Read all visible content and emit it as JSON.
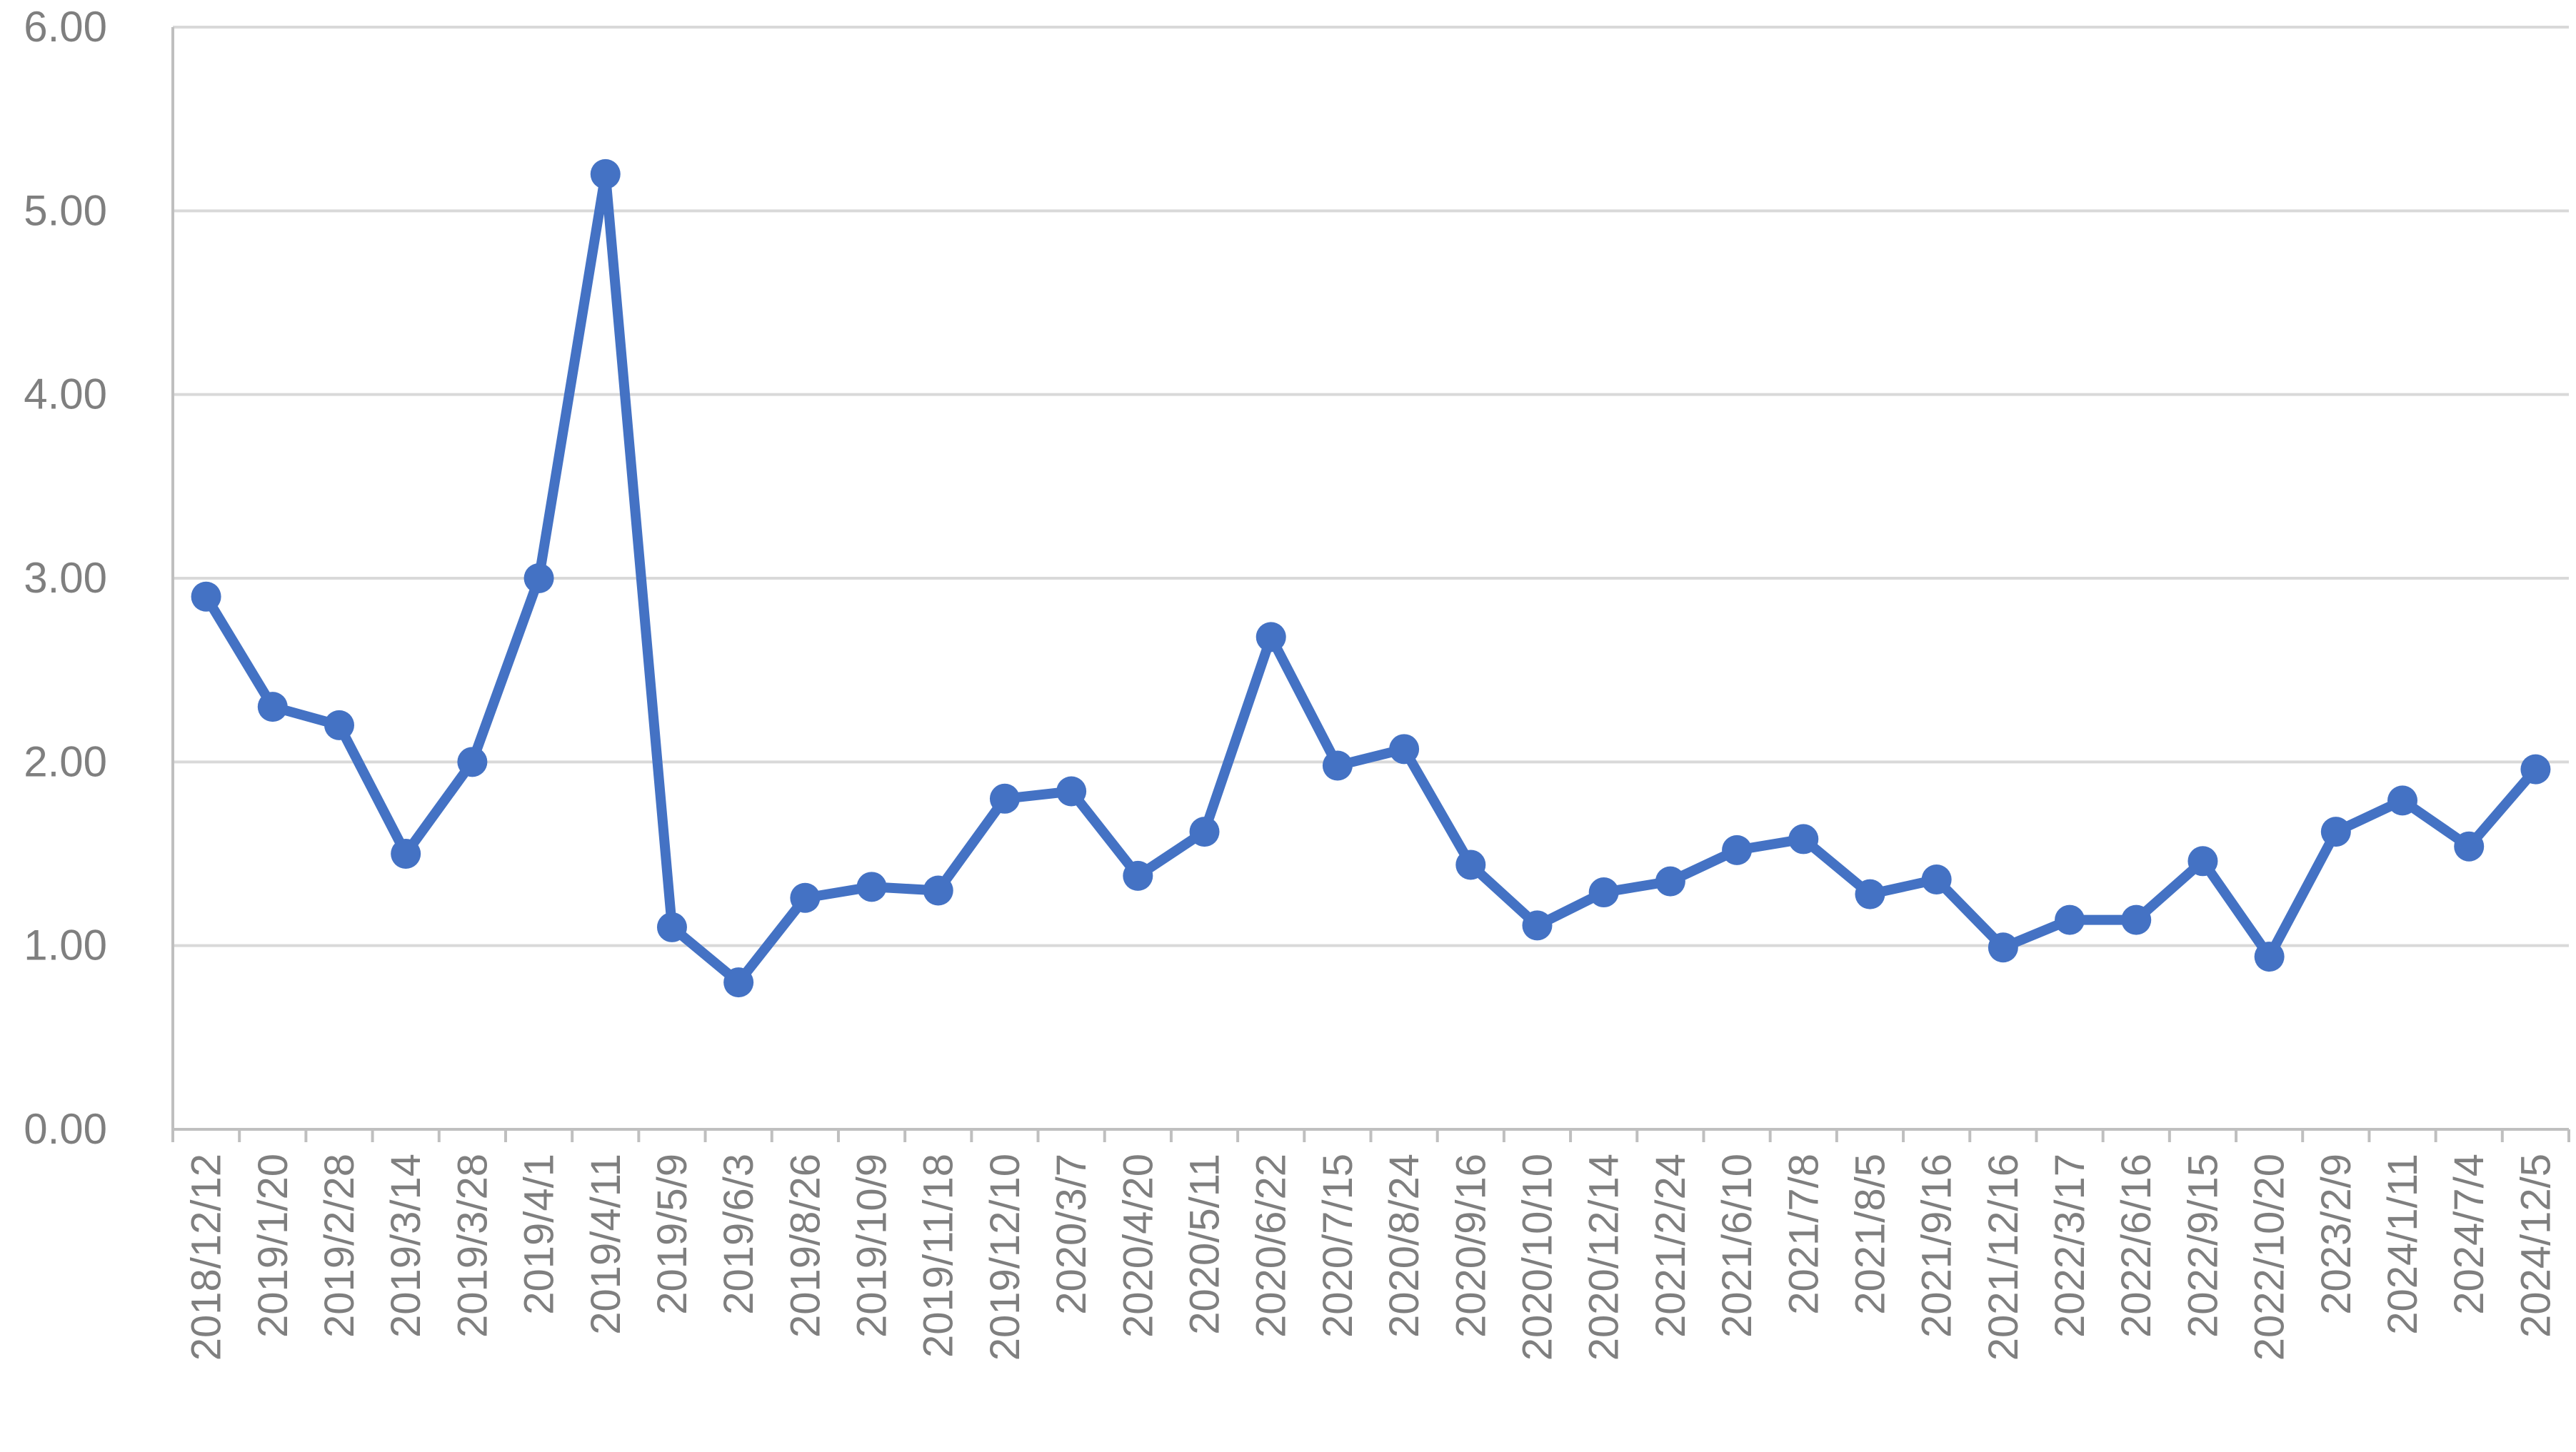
{
  "colors": {
    "series": "#4472c4",
    "grid": "#d9d9d9",
    "axis": "#bfbfbf",
    "tick_text": "#7f7f7f",
    "background": "#ffffff"
  },
  "chart_data": {
    "type": "line",
    "title": "",
    "xlabel": "",
    "ylabel": "",
    "ylim": [
      0,
      6
    ],
    "y_ticks": [
      "0.00",
      "1.00",
      "2.00",
      "3.00",
      "4.00",
      "5.00",
      "6.00"
    ],
    "grid": true,
    "legend": "none",
    "markers": true,
    "categories": [
      "2018/12/12",
      "2019/1/20",
      "2019/2/28",
      "2019/3/14",
      "2019/3/28",
      "2019/4/1",
      "2019/4/11",
      "2019/5/9",
      "2019/6/3",
      "2019/8/26",
      "2019/10/9",
      "2019/11/18",
      "2019/12/10",
      "2020/3/7",
      "2020/4/20",
      "2020/5/11",
      "2020/6/22",
      "2020/7/15",
      "2020/8/24",
      "2020/9/16",
      "2020/10/10",
      "2020/12/14",
      "2021/2/24",
      "2021/6/10",
      "2021/7/8",
      "2021/8/5",
      "2021/9/16",
      "2021/12/16",
      "2022/3/17",
      "2022/6/16",
      "2022/9/15",
      "2022/10/20",
      "2023/2/9",
      "2024/1/11",
      "2024/7/4",
      "2024/12/5"
    ],
    "series": [
      {
        "values": [
          2.9,
          2.3,
          2.2,
          1.5,
          2.0,
          3.0,
          5.2,
          1.1,
          0.8,
          1.26,
          1.32,
          1.3,
          1.8,
          1.84,
          1.38,
          1.62,
          2.68,
          1.98,
          2.07,
          1.44,
          1.11,
          1.29,
          1.35,
          1.52,
          1.58,
          1.28,
          1.36,
          0.99,
          1.14,
          1.14,
          1.46,
          0.94,
          1.62,
          1.79,
          1.54,
          1.96
        ]
      }
    ]
  }
}
